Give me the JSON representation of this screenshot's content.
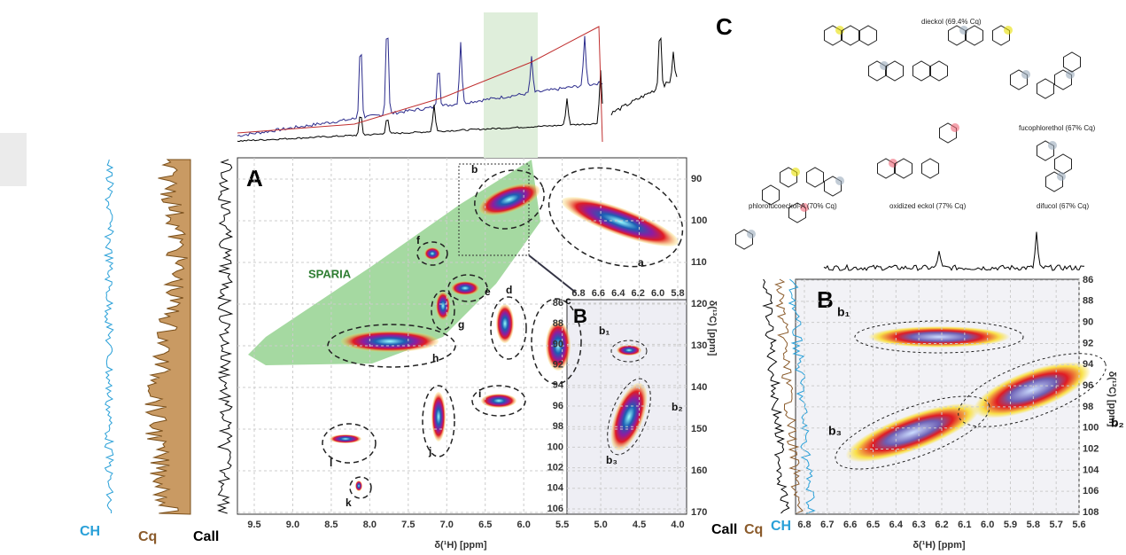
{
  "panel_A": {
    "label": "A",
    "x_title": "δ(¹H) [ppm]",
    "y_title": "δ(¹³C) [ppm]",
    "xticks": [
      "9.5",
      "9.0",
      "8.5",
      "8.0",
      "7.5",
      "7.0",
      "6.5",
      "6.0",
      "5.5",
      "5.0",
      "4.5",
      "4.0"
    ],
    "yticks": [
      "90",
      "100",
      "110",
      "120",
      "130",
      "140",
      "150",
      "160",
      "170"
    ],
    "annotation": "SPARIA",
    "regions": [
      "a",
      "b",
      "c",
      "d",
      "e",
      "f",
      "g",
      "h",
      "i",
      "j",
      "k",
      "l"
    ],
    "traces": [
      "CH",
      "Cq",
      "Call"
    ]
  },
  "inset_B": {
    "label": "B",
    "xticks": [
      "6.8",
      "6.6",
      "6.4",
      "6.2",
      "6.0",
      "5.8"
    ],
    "yticks": [
      "86",
      "88",
      "90",
      "92",
      "94",
      "96",
      "98",
      "100",
      "102",
      "104",
      "106"
    ],
    "regions": [
      "b₁",
      "b₂",
      "b₃"
    ]
  },
  "panel_B": {
    "label": "B",
    "x_title": "δ(¹H) [ppm]",
    "y_title": "δ(¹³C) [ppm]",
    "xticks": [
      "6.8",
      "6.7",
      "6.6",
      "6.5",
      "6.4",
      "6.3",
      "6.2",
      "6.1",
      "6.0",
      "5.9",
      "5.8",
      "5.7",
      "5.6"
    ],
    "yticks": [
      "86",
      "88",
      "90",
      "92",
      "94",
      "96",
      "98",
      "100",
      "102",
      "104",
      "106",
      "108"
    ],
    "regions": [
      "b₁",
      "b₂",
      "b₃"
    ],
    "traces": [
      "Call",
      "Cq",
      "CH"
    ]
  },
  "panel_C": {
    "label": "C",
    "compounds": [
      "dieckol (69.4% Cq)",
      "fucophlorethol (67% Cq)",
      "phlorofucoeckol-A (70% Cq)",
      "oxidized eckol (77% Cq)",
      "difucol (67% Cq)"
    ]
  }
}
